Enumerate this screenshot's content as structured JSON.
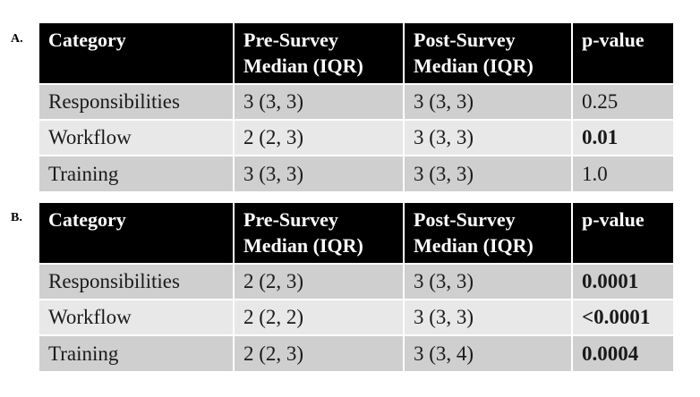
{
  "panels": [
    {
      "label": "A.",
      "headers": [
        "Category",
        "Pre-Survey\nMedian (IQR)",
        "Post-Survey\nMedian (IQR)",
        "p-value"
      ],
      "rows": [
        {
          "category": "Responsibilities",
          "pre": "3 (3, 3)",
          "post": "3 (3, 3)",
          "p": "0.25",
          "significant": false
        },
        {
          "category": "Workflow",
          "pre": "2 (2, 3)",
          "post": "3 (3, 3)",
          "p": "0.01",
          "significant": true
        },
        {
          "category": "Training",
          "pre": "3 (3, 3)",
          "post": "3 (3, 3)",
          "p": "1.0",
          "significant": false
        }
      ]
    },
    {
      "label": "B.",
      "headers": [
        "Category",
        "Pre-Survey\nMedian (IQR)",
        "Post-Survey\nMedian (IQR)",
        "p-value"
      ],
      "rows": [
        {
          "category": "Responsibilities",
          "pre": "2 (2, 3)",
          "post": "3 (3, 3)",
          "p": "0.0001",
          "significant": true
        },
        {
          "category": "Workflow",
          "pre": "2 (2, 2)",
          "post": "3 (3, 3)",
          "p": "<0.0001",
          "significant": true
        },
        {
          "category": "Training",
          "pre": "2 (2, 3)",
          "post": "3 (3, 4)",
          "p": "0.0004",
          "significant": true
        }
      ]
    }
  ],
  "colors": {
    "header_bg": "#000000",
    "header_text": "#ffffff",
    "row_dark": "#cfcfcf",
    "row_light": "#e8e8e8"
  }
}
